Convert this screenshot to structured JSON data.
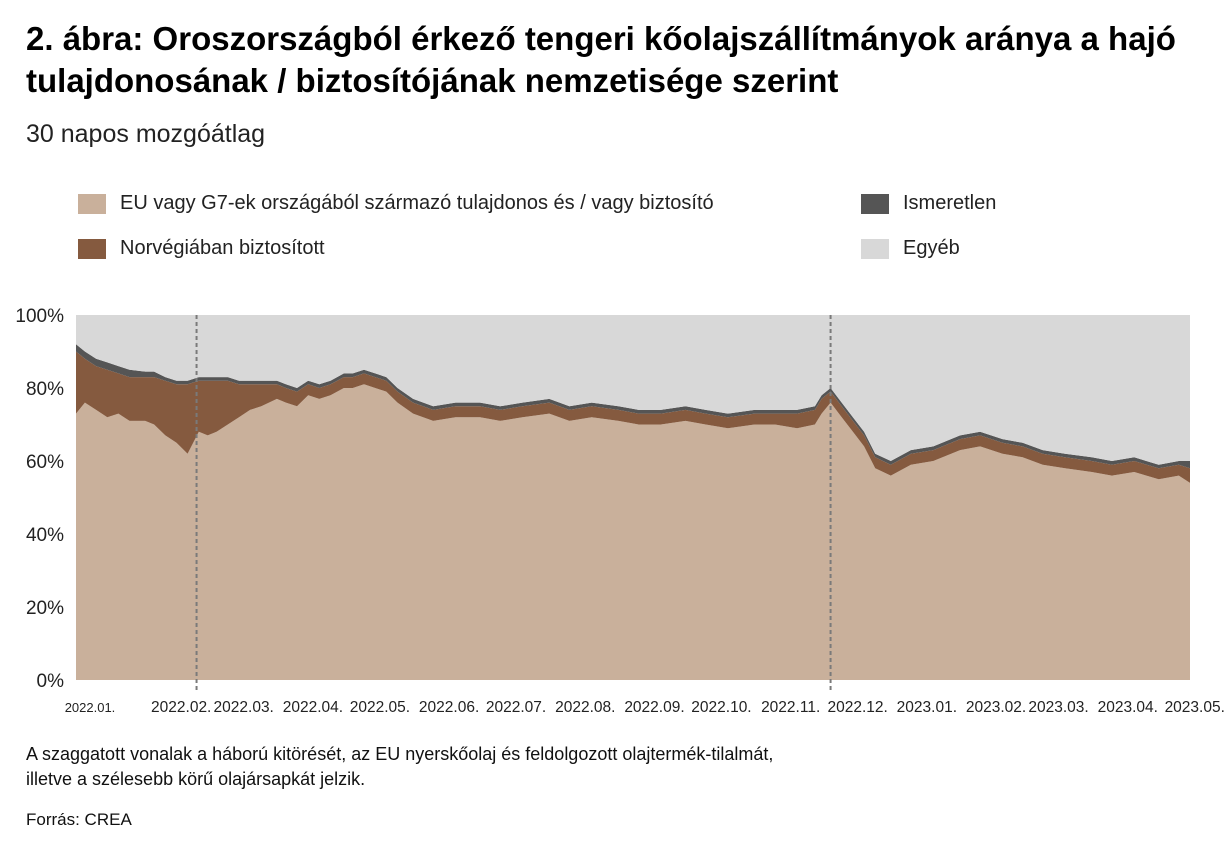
{
  "title": "2. ábra: Oroszországból érkező tengeri kőolajszállítmányok aránya a hajó tulajdonosának / biztosítójának nemzetisége szerint",
  "subtitle": "30 napos mozgóátlag",
  "note_line1": "A szaggatott vonalak a háború kitörését, az EU nyerskőolaj és feldolgozott olajtermék-tilalmát,",
  "note_line2": "illetve a szélesebb körű olajársapkát jelzik.",
  "source": "Forrás: CREA",
  "colors": {
    "eu_g7": "#c9b09b",
    "norway": "#855a3f",
    "unknown": "#555555",
    "other": "#d8d8d8"
  },
  "chart_data": {
    "type": "area",
    "stacked": true,
    "title": "2. ábra: Oroszországból érkező tengeri kőolajszállítmányok aránya a hajó tulajdonosának / biztosítójának nemzetisége szerint",
    "subtitle": "30 napos mozgóátlag",
    "xlabel": "",
    "ylabel": "",
    "ylim": [
      0,
      100
    ],
    "yticks": [
      0,
      20,
      40,
      60,
      80,
      100
    ],
    "ytick_labels": [
      "0%",
      "20%",
      "40%",
      "60%",
      "80%",
      "100%"
    ],
    "xtick_labels": [
      "2022.01.",
      "2022.02.",
      "2022.03.",
      "2022.04.",
      "2022.05.",
      "2022.06.",
      "2022.07.",
      "2022.08.",
      "2022.09.",
      "2022.10.",
      "2022.11.",
      "2022.12.",
      "2023.01.",
      "2023.02.",
      "2023.03.",
      "2023.04.",
      "2023.05."
    ],
    "legend_placement": "top",
    "vlines": [
      "2022-02-24",
      "2022-12-05"
    ],
    "x": [
      "2022-01-01",
      "2022-01-05",
      "2022-01-10",
      "2022-01-15",
      "2022-01-20",
      "2022-01-25",
      "2022-02-01",
      "2022-02-05",
      "2022-02-10",
      "2022-02-15",
      "2022-02-20",
      "2022-02-25",
      "2022-03-01",
      "2022-03-05",
      "2022-03-10",
      "2022-03-15",
      "2022-03-20",
      "2022-03-25",
      "2022-04-01",
      "2022-04-05",
      "2022-04-10",
      "2022-04-15",
      "2022-04-20",
      "2022-04-25",
      "2022-05-01",
      "2022-05-05",
      "2022-05-10",
      "2022-05-15",
      "2022-05-20",
      "2022-05-25",
      "2022-06-01",
      "2022-06-10",
      "2022-06-20",
      "2022-07-01",
      "2022-07-10",
      "2022-07-20",
      "2022-08-01",
      "2022-08-10",
      "2022-08-20",
      "2022-09-01",
      "2022-09-10",
      "2022-09-20",
      "2022-10-01",
      "2022-10-10",
      "2022-10-20",
      "2022-11-01",
      "2022-11-10",
      "2022-11-20",
      "2022-11-28",
      "2022-12-01",
      "2022-12-05",
      "2022-12-10",
      "2022-12-15",
      "2022-12-20",
      "2022-12-25",
      "2023-01-01",
      "2023-01-10",
      "2023-01-20",
      "2023-02-01",
      "2023-02-10",
      "2023-02-20",
      "2023-03-01",
      "2023-03-10",
      "2023-03-20",
      "2023-04-01",
      "2023-04-10",
      "2023-04-20",
      "2023-05-01",
      "2023-05-10",
      "2023-05-15"
    ],
    "series": [
      {
        "name": "EU vagy G7-ek országából származó tulajdonos és / vagy biztosító",
        "values": [
          73,
          76,
          74,
          72,
          73,
          71,
          71,
          70,
          67,
          65,
          62,
          68,
          67,
          68,
          70,
          72,
          74,
          75,
          77,
          76,
          75,
          78,
          77,
          78,
          80,
          80,
          81,
          80,
          79,
          76,
          73,
          71,
          72,
          72,
          71,
          72,
          73,
          71,
          72,
          71,
          70,
          70,
          71,
          70,
          69,
          70,
          70,
          69,
          70,
          73,
          76,
          72,
          68,
          64,
          58,
          56,
          59,
          60,
          63,
          64,
          62,
          61,
          59,
          58,
          57,
          56,
          57,
          55,
          56,
          54
        ]
      },
      {
        "name": "Norvégiában biztosított",
        "values": [
          17,
          12,
          12,
          13,
          11,
          12,
          12,
          13,
          15,
          16,
          19,
          14,
          15,
          14,
          12,
          9,
          7,
          6,
          4,
          4,
          4,
          3,
          3,
          3,
          3,
          3,
          3,
          3,
          3,
          3,
          3,
          3,
          3,
          3,
          3,
          3,
          3,
          3,
          3,
          3,
          3,
          3,
          3,
          3,
          3,
          3,
          3,
          4,
          4,
          4,
          3,
          3,
          3,
          3,
          3,
          3,
          3,
          3,
          3,
          3,
          3,
          3,
          3,
          3,
          3,
          3,
          3,
          3,
          3,
          4
        ]
      },
      {
        "name": "Ismeretlen",
        "values": [
          2,
          2,
          2,
          2,
          2,
          2,
          1.5,
          1.5,
          1,
          1,
          1,
          1,
          1,
          1,
          1,
          1,
          1,
          1,
          1,
          1,
          1,
          1,
          1,
          1,
          1,
          1,
          1,
          1,
          1,
          1,
          1,
          1,
          1,
          1,
          1,
          1,
          1,
          1,
          1,
          1,
          1,
          1,
          1,
          1,
          1,
          1,
          1,
          1,
          1,
          1,
          1,
          1,
          1,
          1,
          1,
          1,
          1,
          1,
          1,
          1,
          1,
          1,
          1,
          1,
          1,
          1,
          1,
          1,
          1,
          2
        ]
      },
      {
        "name": "Egyéb",
        "values": [
          8,
          10,
          12,
          13,
          14,
          15,
          15.5,
          15.5,
          17,
          18,
          18,
          17,
          17,
          17,
          17,
          18,
          18,
          18,
          18,
          19,
          20,
          18,
          19,
          18,
          16,
          16,
          15,
          16,
          17,
          20,
          23,
          25,
          24,
          24,
          25,
          24,
          23,
          25,
          24,
          25,
          26,
          26,
          25,
          26,
          27,
          26,
          26,
          26,
          25,
          22,
          20,
          24,
          28,
          32,
          38,
          40,
          37,
          36,
          33,
          32,
          34,
          35,
          37,
          38,
          39,
          40,
          39,
          41,
          40,
          40
        ]
      }
    ]
  },
  "legend": {
    "eu_g7": "EU vagy G7-ek országából származó tulajdonos és / vagy biztosító",
    "norway": "Norvégiában biztosított",
    "unknown": "Ismeretlen",
    "other": "Egyéb"
  }
}
